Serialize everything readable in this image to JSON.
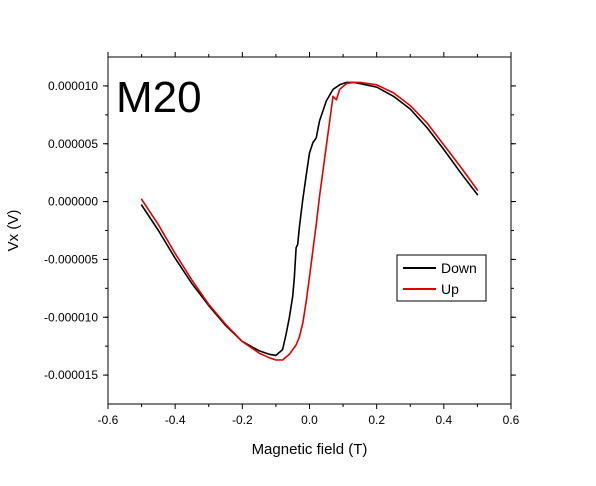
{
  "chart_data": {
    "type": "line",
    "panel_label": "M20",
    "xlabel": "Magnetic field (T)",
    "ylabel": "Vx (V)",
    "xlim": [
      -0.6,
      0.6
    ],
    "ylim": [
      -1.75e-05,
      1.25e-05
    ],
    "x_ticks": [
      -0.6,
      -0.4,
      -0.2,
      0.0,
      0.2,
      0.4,
      0.6
    ],
    "x_tick_labels": [
      "-0.6",
      "-0.4",
      "-0.2",
      "0.0",
      "0.2",
      "0.4",
      "0.6"
    ],
    "y_ticks": [
      1e-05,
      5e-06,
      0.0,
      -5e-06,
      -1e-05,
      -1.5e-05
    ],
    "y_tick_labels": [
      "0.000010",
      "0.000005",
      "0.000000",
      "-0.000005",
      "-0.000010",
      "-0.000015"
    ],
    "legend_position": "right",
    "grid": false,
    "series": [
      {
        "name": "Down",
        "color": "#000000",
        "x": [
          -0.5,
          -0.45,
          -0.4,
          -0.35,
          -0.3,
          -0.25,
          -0.2,
          -0.15,
          -0.12,
          -0.1,
          -0.08,
          -0.07,
          -0.06,
          -0.05,
          -0.045,
          -0.04,
          -0.035,
          -0.03,
          -0.02,
          -0.01,
          0.0,
          0.01,
          0.02,
          0.03,
          0.05,
          0.07,
          0.09,
          0.11,
          0.13,
          0.15,
          0.2,
          0.25,
          0.3,
          0.35,
          0.4,
          0.45,
          0.5
        ],
        "y": [
          -3e-07,
          -2.5e-06,
          -4.9e-06,
          -7.1e-06,
          -9e-06,
          -1.07e-05,
          -1.21e-05,
          -1.29e-05,
          -1.32e-05,
          -1.33e-05,
          -1.28e-05,
          -1.15e-05,
          -1e-05,
          -8.2e-06,
          -6.5e-06,
          -4e-06,
          -3.7e-06,
          -2.2e-06,
          2e-07,
          2.2e-06,
          4.2e-06,
          5.1e-06,
          5.5e-06,
          7e-06,
          8.7e-06,
          9.7e-06,
          1.01e-05,
          1.03e-05,
          1.03e-05,
          1.02e-05,
          9.9e-06,
          9.1e-06,
          8e-06,
          6.4e-06,
          4.5e-06,
          2.5e-06,
          6e-07
        ]
      },
      {
        "name": "Up",
        "color": "#e00000",
        "x": [
          -0.5,
          -0.45,
          -0.4,
          -0.35,
          -0.3,
          -0.25,
          -0.2,
          -0.15,
          -0.12,
          -0.1,
          -0.08,
          -0.06,
          -0.04,
          -0.03,
          -0.02,
          -0.01,
          0.0,
          0.01,
          0.02,
          0.03,
          0.05,
          0.07,
          0.08,
          0.09,
          0.11,
          0.13,
          0.15,
          0.2,
          0.25,
          0.3,
          0.35,
          0.4,
          0.45,
          0.5
        ],
        "y": [
          2e-07,
          -2e-06,
          -4.5e-06,
          -6.8e-06,
          -8.9e-06,
          -1.06e-05,
          -1.21e-05,
          -1.31e-05,
          -1.35e-05,
          -1.37e-05,
          -1.37e-05,
          -1.32e-05,
          -1.24e-05,
          -1.17e-05,
          -1.05e-05,
          -8.7e-06,
          -6.5e-06,
          -4.2e-06,
          -2e-06,
          5e-07,
          4.8e-06,
          9.1e-06,
          8.8e-06,
          9.7e-06,
          1.02e-05,
          1.03e-05,
          1.03e-05,
          1.01e-05,
          9.4e-06,
          8.3e-06,
          6.8e-06,
          4.9e-06,
          3e-06,
          1e-06
        ]
      }
    ]
  }
}
